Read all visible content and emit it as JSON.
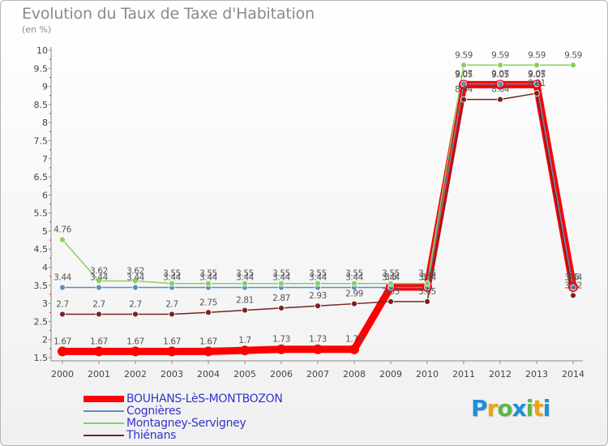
{
  "header": {
    "title": "Evolution du Taux de Taxe d'Habitation",
    "unit": "(en %)"
  },
  "brand": {
    "name": "Proxiti",
    "letters": [
      "P",
      "r",
      "o",
      "x",
      "i",
      "t",
      "i"
    ],
    "colors": [
      "#1e8ed8",
      "#e8a317",
      "#5cb848",
      "#1e8ed8",
      "#5cb848",
      "#e8a317",
      "#1e8ed8"
    ]
  },
  "chart_data": {
    "type": "line",
    "title": "Evolution du Taux de Taxe d'Habitation",
    "ylabel": "(en %)",
    "xlabel": "",
    "x": [
      "2000",
      "2001",
      "2002",
      "2003",
      "2004",
      "2005",
      "2006",
      "2007",
      "2008",
      "2009",
      "2010",
      "2011",
      "2012",
      "2013",
      "2014"
    ],
    "ylim": [
      1.5,
      10
    ],
    "yticks": [
      "1.5",
      "2",
      "2.5",
      "3",
      "3.5",
      "4",
      "4.5",
      "5",
      "5.5",
      "6",
      "6.5",
      "7",
      "7.5",
      "8",
      "8.5",
      "9",
      "9.5",
      "10"
    ],
    "grid": false,
    "legend_position": "bottom-left",
    "series": [
      {
        "name": "BOUHANS-LèS-MONTBOZON",
        "color": "#ff0000",
        "values": [
          1.67,
          1.67,
          1.67,
          1.67,
          1.67,
          1.7,
          1.73,
          1.73,
          1.73,
          3.45,
          3.45,
          9.05,
          9.05,
          9.05,
          3.45
        ],
        "labels": [
          "1.67",
          "1.67",
          "1.67",
          "1.67",
          "1.67",
          "1.7",
          "1.73",
          "1.73",
          "1.73",
          "3.5",
          "3.5",
          "9.05",
          "9.05",
          "9.05",
          "3.5"
        ]
      },
      {
        "name": "Cognières",
        "color": "#5b8fbf",
        "values": [
          3.44,
          3.44,
          3.44,
          3.44,
          3.44,
          3.44,
          3.44,
          3.44,
          3.44,
          3.44,
          3.44,
          9.07,
          9.07,
          9.07,
          3.44
        ],
        "labels": [
          "3.44",
          "3.44",
          "3.44",
          "3.44",
          "3.44",
          "3.44",
          "3.44",
          "3.44",
          "3.44",
          "3.44",
          "3.44",
          "9.07",
          "9.07",
          "9.07",
          "3.44"
        ]
      },
      {
        "name": "Montagney-Servigney",
        "color": "#88d060",
        "values": [
          4.76,
          3.62,
          3.62,
          3.55,
          3.55,
          3.55,
          3.55,
          3.55,
          3.55,
          3.55,
          3.55,
          9.59,
          9.59,
          9.59,
          9.59
        ],
        "labels": [
          "4.76",
          "3.62",
          "3.62",
          "3.55",
          "3.55",
          "3.55",
          "3.55",
          "3.55",
          "3.55",
          "3.55",
          "3.55",
          "9.59",
          "9.59",
          "9.59",
          "9.59"
        ]
      },
      {
        "name": "Thiénans",
        "color": "#7a2222",
        "values": [
          2.7,
          2.7,
          2.7,
          2.7,
          2.75,
          2.81,
          2.87,
          2.93,
          2.99,
          3.05,
          3.05,
          8.64,
          8.64,
          8.81,
          3.22
        ],
        "labels": [
          "2.7",
          "2.7",
          "2.7",
          "2.7",
          "2.75",
          "2.81",
          "2.87",
          "2.93",
          "2.99",
          "3.05",
          "3.05",
          "8.64",
          "8.64",
          "8.81",
          "3.22"
        ]
      }
    ]
  }
}
